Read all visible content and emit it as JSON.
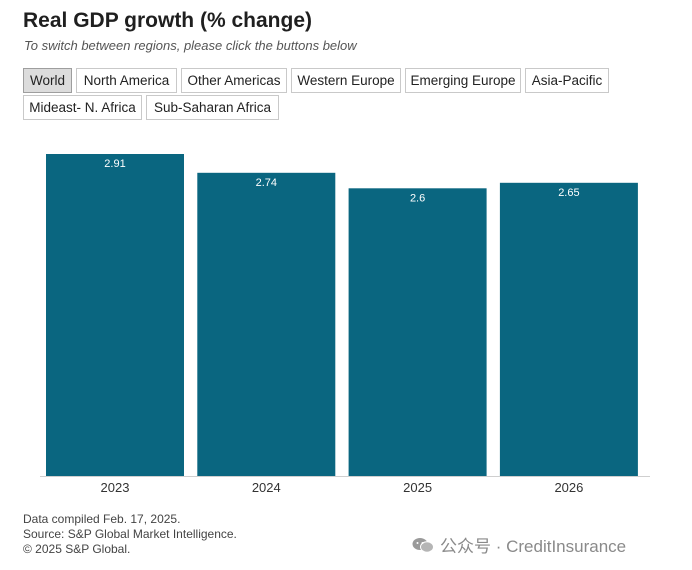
{
  "header": {
    "title": "Real GDP growth (% change)",
    "subtitle": "To switch between regions, please click the buttons below"
  },
  "regions": {
    "selected": "World",
    "buttons": [
      "World",
      "North America",
      "Other Americas",
      "Western Europe",
      "Emerging Europe",
      "Asia-Pacific",
      "Mideast- N. Africa",
      "Sub-Saharan Africa"
    ]
  },
  "chart_data": {
    "type": "bar",
    "categories": [
      "2023",
      "2024",
      "2025",
      "2026"
    ],
    "values": [
      2.91,
      2.74,
      2.6,
      2.65
    ],
    "data_labels": [
      "2.91",
      "2.74",
      "2.6",
      "2.65"
    ],
    "title": "Real GDP growth (% change)",
    "xlabel": "",
    "ylabel": "",
    "ylim": [
      0,
      2.91
    ],
    "grid": false,
    "legend": "none",
    "bar_color": "#0a6680"
  },
  "footer": {
    "line1": "Data compiled Feb. 17, 2025.",
    "line2": "Source: S&P Global Market Intelligence.",
    "line3": "© 2025 S&P Global."
  },
  "watermark": {
    "text": "公众号 · CreditInsurance",
    "icon": "wechat-icon"
  }
}
